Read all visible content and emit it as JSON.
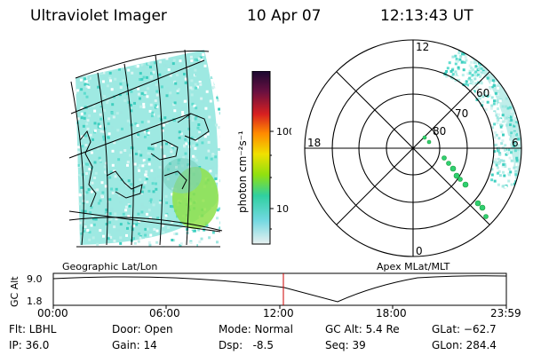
{
  "header": {
    "title": "Ultraviolet Imager",
    "date": "10 Apr 07",
    "time": "12:13:43 UT"
  },
  "colorbar": {
    "label": "photon cm⁻²s⁻¹",
    "ticks": [
      "100",
      "10"
    ]
  },
  "geo_panel": {
    "label": "Geographic Lat/Lon"
  },
  "polar_panel": {
    "label": "Apex MLat/MLT",
    "lat_labels": [
      "80",
      "70",
      "60"
    ],
    "mlt_labels": [
      "12",
      "18",
      "6",
      "0"
    ]
  },
  "altitude_plot": {
    "ylabel": "GC Alt",
    "yticks": [
      "9.0",
      "1.8"
    ],
    "xticks": [
      "00:00",
      "06:00",
      "12:00",
      "18:00",
      "23:59"
    ]
  },
  "status": {
    "filter": "Flt: LBHL",
    "ip": "IP: 36.0",
    "door": "Door: Open",
    "gain": "Gain: 14",
    "mode": "Mode: Normal",
    "dsp": "Dsp:   -8.5",
    "gcalt": "GC Alt: 5.4 Re",
    "seq": "Seq: 39",
    "glat": "GLat: −62.7",
    "glon": "GLon: 284.4"
  },
  "colors": {
    "aurora_cyan": "#40e0d0",
    "aurora_green": "#7cfc00",
    "current_time_marker": "#cc0000"
  }
}
